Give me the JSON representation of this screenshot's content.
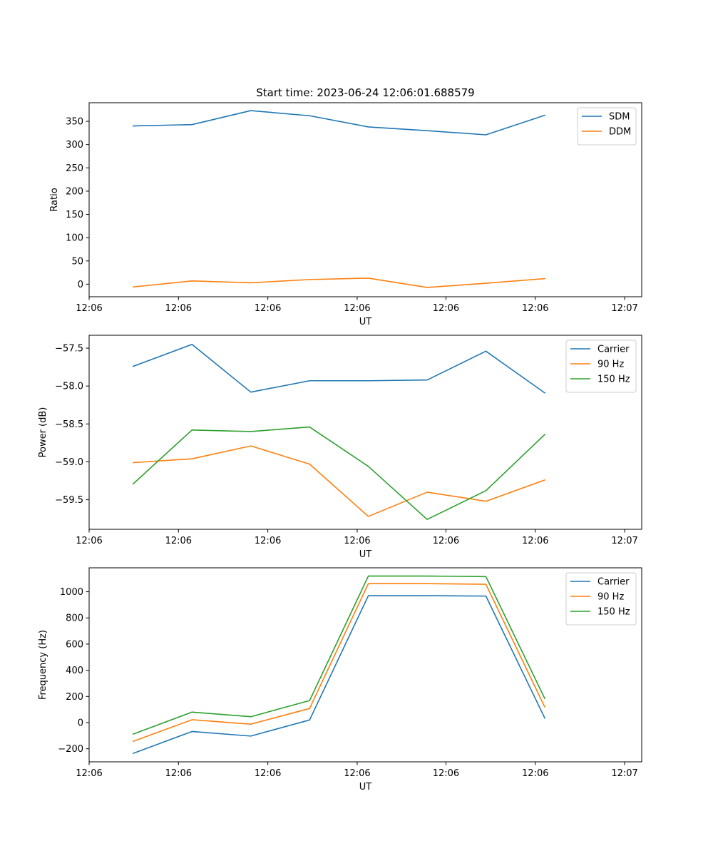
{
  "title": "Start time: 2023-06-24 12:06:01.688579",
  "colors": {
    "blue": "#1f77b4",
    "orange": "#ff7f0e",
    "green": "#2ca02c",
    "axis": "#000000",
    "legend_border": "#cccccc"
  },
  "chart_data": [
    {
      "type": "line",
      "title": "Start time: 2023-06-24 12:06:01.688579",
      "xlabel": "UT",
      "ylabel": "Ratio",
      "x_index": [
        0,
        1,
        2,
        3,
        4,
        5,
        6,
        7
      ],
      "x_range_index": [
        -0.75,
        8.65
      ],
      "x_ticks_index": [
        -0.75,
        0.77,
        2.29,
        3.81,
        5.32,
        6.84,
        8.36
      ],
      "x_tick_labels": [
        "12:06",
        "12:06",
        "12:06",
        "12:06",
        "12:06",
        "12:06",
        "12:07"
      ],
      "ylim": [
        -27,
        390
      ],
      "y_ticks": [
        0,
        50,
        100,
        150,
        200,
        250,
        300,
        350
      ],
      "y_tick_labels": [
        "0",
        "50",
        "100",
        "150",
        "200",
        "250",
        "300",
        "350"
      ],
      "legend_position": "top-right",
      "grid": false,
      "series": [
        {
          "name": "SDM",
          "color": "#1f77b4",
          "values": [
            340,
            343,
            373,
            362,
            338,
            330,
            321,
            363
          ]
        },
        {
          "name": "DDM",
          "color": "#ff7f0e",
          "values": [
            -6,
            7,
            3,
            10,
            13,
            -7,
            2,
            12
          ]
        }
      ]
    },
    {
      "type": "line",
      "title": "",
      "xlabel": "UT",
      "ylabel": "Power (dB)",
      "x_index": [
        0,
        1,
        2,
        3,
        4,
        5,
        6,
        7
      ],
      "x_range_index": [
        -0.75,
        8.65
      ],
      "x_ticks_index": [
        -0.75,
        0.77,
        2.29,
        3.81,
        5.32,
        6.84,
        8.36
      ],
      "x_tick_labels": [
        "12:06",
        "12:06",
        "12:06",
        "12:06",
        "12:06",
        "12:06",
        "12:07"
      ],
      "ylim": [
        -59.89,
        -57.33
      ],
      "y_ticks": [
        -59.5,
        -59.0,
        -58.5,
        -58.0,
        -57.5
      ],
      "y_tick_labels": [
        "−59.5",
        "−59.0",
        "−58.5",
        "−58.0",
        "−57.5"
      ],
      "legend_position": "top-right",
      "grid": false,
      "series": [
        {
          "name": "Carrier",
          "color": "#1f77b4",
          "values": [
            -57.74,
            -57.45,
            -58.08,
            -57.93,
            -57.93,
            -57.92,
            -57.54,
            -58.09
          ]
        },
        {
          "name": "90 Hz",
          "color": "#ff7f0e",
          "values": [
            -59.01,
            -58.96,
            -58.79,
            -59.03,
            -59.72,
            -59.4,
            -59.52,
            -59.24
          ]
        },
        {
          "name": "150 Hz",
          "color": "#2ca02c",
          "values": [
            -59.29,
            -58.58,
            -58.6,
            -58.54,
            -59.06,
            -59.76,
            -59.38,
            -58.64
          ]
        }
      ]
    },
    {
      "type": "line",
      "title": "",
      "xlabel": "UT",
      "ylabel": "Frequency (Hz)",
      "x_index": [
        0,
        1,
        2,
        3,
        4,
        5,
        6,
        7
      ],
      "x_range_index": [
        -0.75,
        8.65
      ],
      "x_ticks_index": [
        -0.75,
        0.77,
        2.29,
        3.81,
        5.32,
        6.84,
        8.36
      ],
      "x_tick_labels": [
        "12:06",
        "12:06",
        "12:06",
        "12:06",
        "12:06",
        "12:06",
        "12:07"
      ],
      "ylim": [
        -300,
        1183
      ],
      "y_ticks": [
        -200,
        0,
        200,
        400,
        600,
        800,
        1000
      ],
      "y_tick_labels": [
        "−200",
        "0",
        "200",
        "400",
        "600",
        "800",
        "1000"
      ],
      "legend_position": "top-right",
      "grid": false,
      "series": [
        {
          "name": "Carrier",
          "color": "#1f77b4",
          "values": [
            -235,
            -68,
            -103,
            20,
            970,
            970,
            967,
            35
          ]
        },
        {
          "name": "90 Hz",
          "color": "#ff7f0e",
          "values": [
            -143,
            22,
            -12,
            108,
            1062,
            1062,
            1057,
            120
          ]
        },
        {
          "name": "150 Hz",
          "color": "#2ca02c",
          "values": [
            -88,
            80,
            45,
            168,
            1120,
            1120,
            1116,
            185
          ]
        }
      ]
    }
  ]
}
